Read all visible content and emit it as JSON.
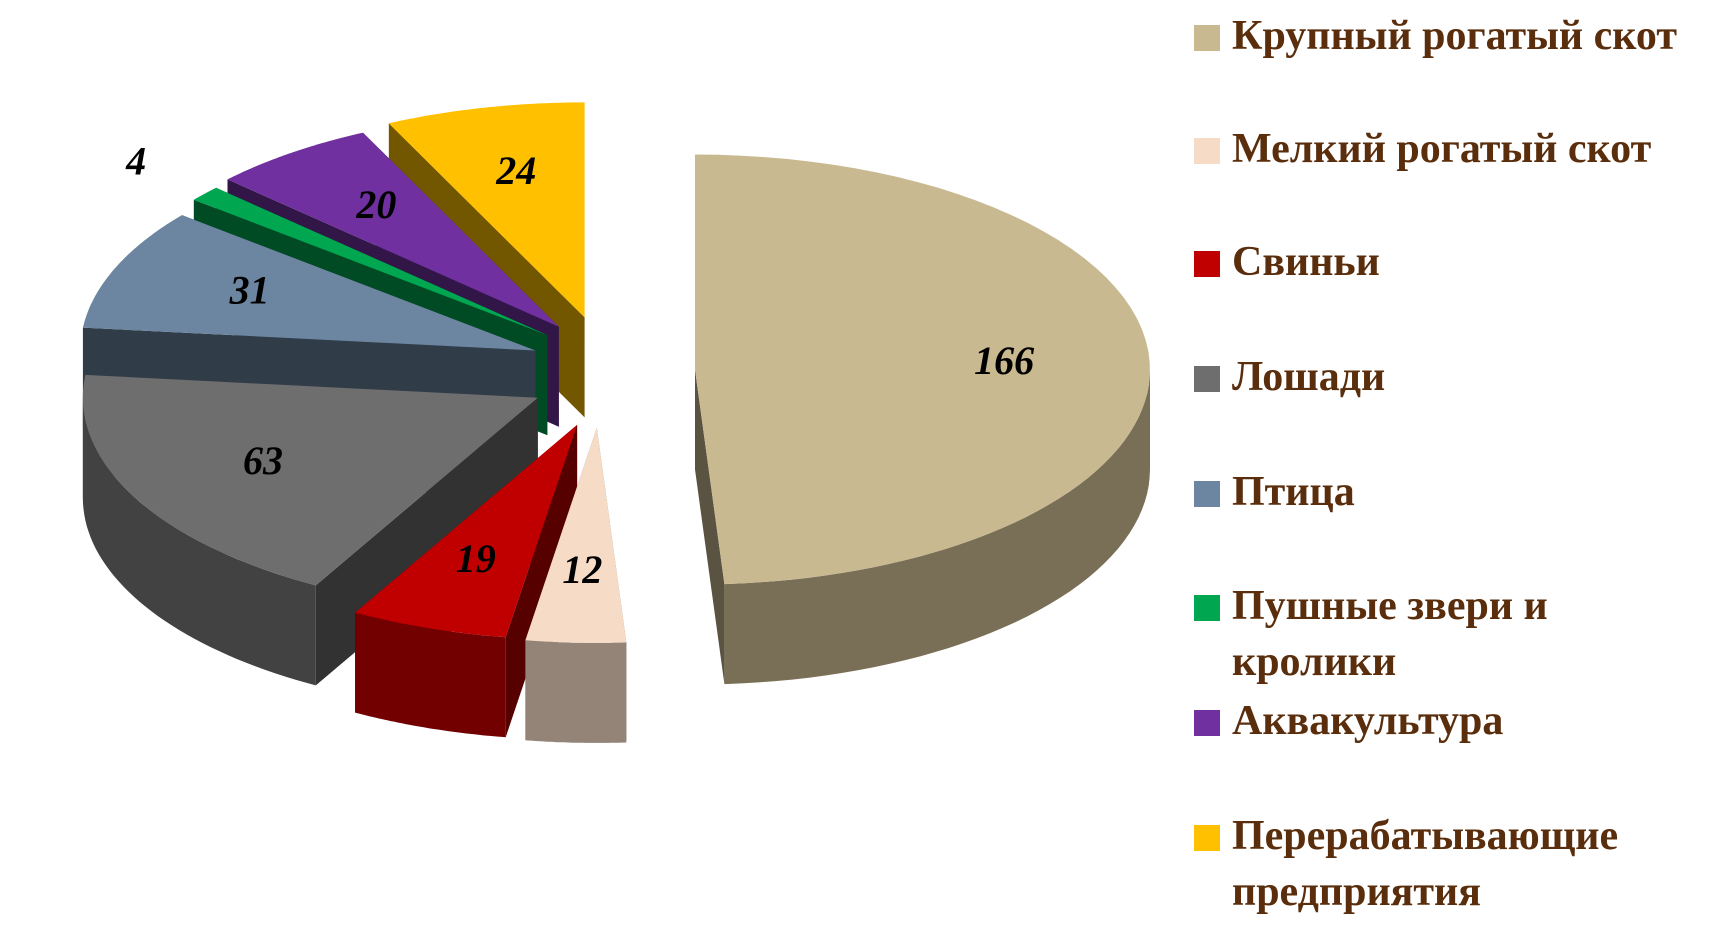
{
  "chart_data": {
    "type": "pie",
    "categories": [
      "Крупный рогатый скот",
      "Мелкий рогатый скот",
      "Свиньи",
      "Лошади",
      "Птица",
      "Пушные звери и кролики",
      "Аквакультура",
      "Перерабатывающие предприятия"
    ],
    "values": [
      166,
      12,
      19,
      63,
      31,
      4,
      20,
      24
    ],
    "colors": [
      "#c9b990",
      "#f6dcc6",
      "#c00000",
      "#6e6e6e",
      "#6c86a2",
      "#00a650",
      "#7030a0",
      "#ffc000"
    ]
  }
}
